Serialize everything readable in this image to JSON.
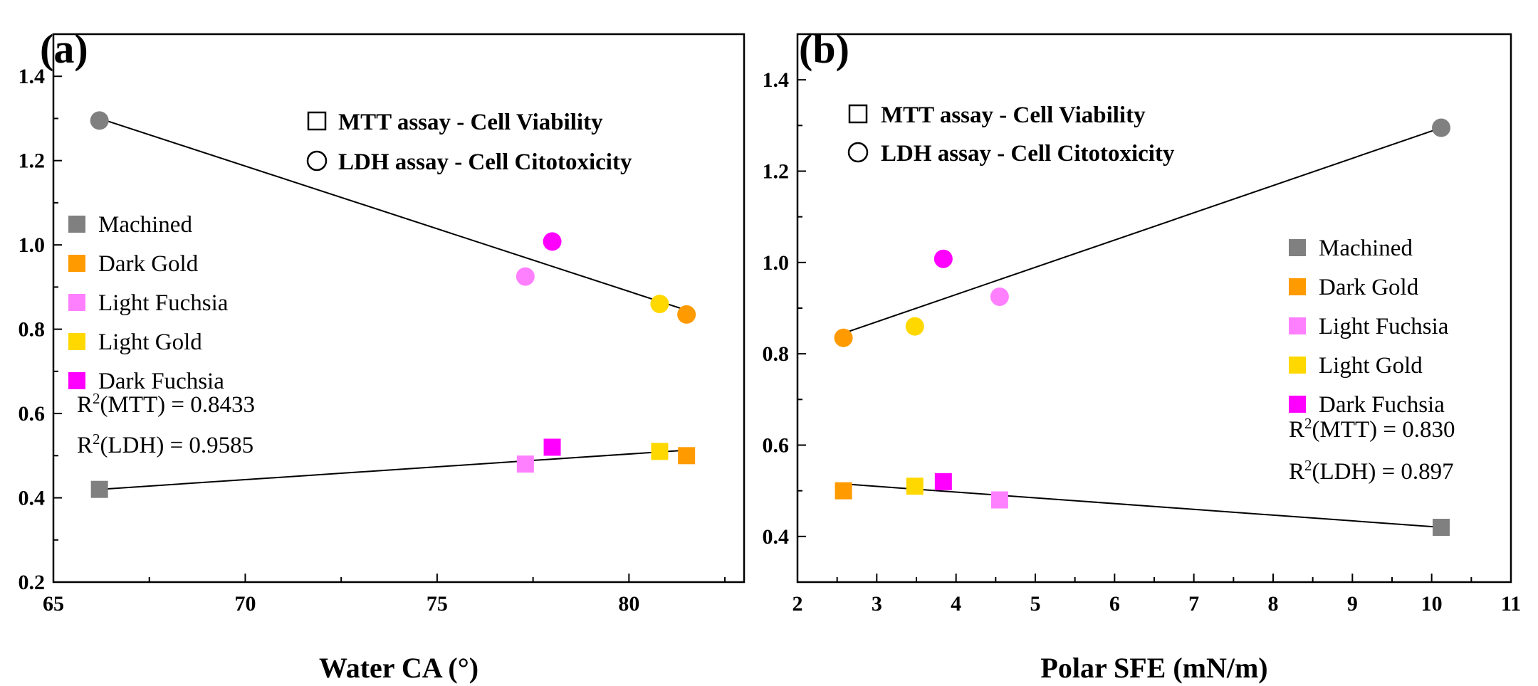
{
  "colors": {
    "Machined": "#808080",
    "Dark Gold": "#FF9A00",
    "Light Fuchsia": "#FF80FF",
    "Light Gold": "#FFD800",
    "Dark Fuchsia": "#FF00FF",
    "fit_line": "#000000"
  },
  "chart_data": [
    {
      "type": "scatter",
      "panel_label": "(a)",
      "title": "",
      "xlabel": "Water CA (°)",
      "ylabel": "",
      "xlim": [
        65,
        83
      ],
      "ylim": [
        0.2,
        1.5
      ],
      "xticks": [
        65,
        70,
        75,
        80
      ],
      "yticks": [
        0.2,
        0.4,
        0.6,
        0.8,
        1.0,
        1.2,
        1.4
      ],
      "xtick_labels": [
        "65",
        "70",
        "75",
        "80"
      ],
      "ytick_labels": [
        "0.2",
        "0.4",
        "0.6",
        "0.8",
        "1.0",
        "1.2",
        "1.4"
      ],
      "marker_legend": [
        {
          "symbol": "square",
          "label": "MTT assay - Cell Viability"
        },
        {
          "symbol": "circle",
          "label": "LDH assay - Cell Citotoxicity"
        }
      ],
      "color_legend": [
        "Machined",
        "Dark Gold",
        "Light Fuchsia",
        "Light Gold",
        "Dark Fuchsia"
      ],
      "r2_prefix": "R",
      "r2_exponent": "2",
      "annotations": [
        "(MTT) = 0.8433",
        "(LDH) = 0.9585"
      ],
      "series": [
        {
          "name": "MTT assay - Cell Viability",
          "marker": "square",
          "points": [
            {
              "sample": "Machined",
              "x": 66.2,
              "y": 0.42
            },
            {
              "sample": "Light Fuchsia",
              "x": 77.3,
              "y": 0.48
            },
            {
              "sample": "Dark Fuchsia",
              "x": 78.0,
              "y": 0.52
            },
            {
              "sample": "Light Gold",
              "x": 80.8,
              "y": 0.51
            },
            {
              "sample": "Dark Gold",
              "x": 81.5,
              "y": 0.5
            }
          ],
          "fit": {
            "x": [
              66.2,
              81.5
            ],
            "y": [
              0.42,
              0.513
            ]
          }
        },
        {
          "name": "LDH assay - Cell Citotoxicity",
          "marker": "circle",
          "points": [
            {
              "sample": "Machined",
              "x": 66.2,
              "y": 1.295
            },
            {
              "sample": "Light Fuchsia",
              "x": 77.3,
              "y": 0.925
            },
            {
              "sample": "Dark Fuchsia",
              "x": 78.0,
              "y": 1.008
            },
            {
              "sample": "Light Gold",
              "x": 80.8,
              "y": 0.86
            },
            {
              "sample": "Dark Gold",
              "x": 81.5,
              "y": 0.835
            }
          ],
          "fit": {
            "x": [
              66.2,
              81.5
            ],
            "y": [
              1.3,
              0.845
            ]
          }
        }
      ]
    },
    {
      "type": "scatter",
      "panel_label": "(b)",
      "title": "",
      "xlabel": "Polar SFE (mN/m)",
      "ylabel": "",
      "xlim": [
        2,
        11
      ],
      "ylim": [
        0.3,
        1.5
      ],
      "xticks": [
        2,
        3,
        4,
        5,
        6,
        7,
        8,
        9,
        10,
        11
      ],
      "yticks": [
        0.4,
        0.6,
        0.8,
        1.0,
        1.2,
        1.4
      ],
      "xtick_labels": [
        "2",
        "3",
        "4",
        "5",
        "6",
        "7",
        "8",
        "9",
        "10",
        "11"
      ],
      "ytick_labels": [
        "0.4",
        "0.6",
        "0.8",
        "1.0",
        "1.2",
        "1.4"
      ],
      "marker_legend": [
        {
          "symbol": "square",
          "label": "MTT assay - Cell Viability"
        },
        {
          "symbol": "circle",
          "label": "LDH assay - Cell Citotoxicity"
        }
      ],
      "color_legend": [
        "Machined",
        "Dark Gold",
        "Light Fuchsia",
        "Light Gold",
        "Dark Fuchsia"
      ],
      "r2_prefix": "R",
      "r2_exponent": "2",
      "annotations": [
        "(MTT) = 0.830",
        "(LDH) = 0.897"
      ],
      "series": [
        {
          "name": "MTT assay - Cell Viability",
          "marker": "square",
          "points": [
            {
              "sample": "Dark Gold",
              "x": 2.58,
              "y": 0.5
            },
            {
              "sample": "Light Gold",
              "x": 3.48,
              "y": 0.51
            },
            {
              "sample": "Dark Fuchsia",
              "x": 3.84,
              "y": 0.52
            },
            {
              "sample": "Light Fuchsia",
              "x": 4.55,
              "y": 0.48
            },
            {
              "sample": "Machined",
              "x": 10.12,
              "y": 0.42
            }
          ],
          "fit": {
            "x": [
              2.58,
              10.12
            ],
            "y": [
              0.515,
              0.42
            ]
          }
        },
        {
          "name": "LDH assay - Cell Citotoxicity",
          "marker": "circle",
          "points": [
            {
              "sample": "Dark Gold",
              "x": 2.58,
              "y": 0.835
            },
            {
              "sample": "Light Gold",
              "x": 3.48,
              "y": 0.86
            },
            {
              "sample": "Dark Fuchsia",
              "x": 3.84,
              "y": 1.008
            },
            {
              "sample": "Light Fuchsia",
              "x": 4.55,
              "y": 0.925
            },
            {
              "sample": "Machined",
              "x": 10.12,
              "y": 1.295
            }
          ],
          "fit": {
            "x": [
              2.58,
              10.12
            ],
            "y": [
              0.845,
              1.295
            ]
          }
        }
      ]
    }
  ]
}
